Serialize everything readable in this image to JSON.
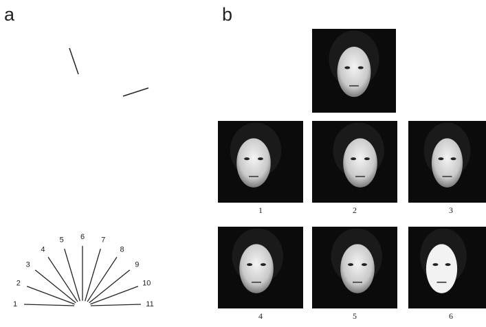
{
  "panels": {
    "a": {
      "label": "a",
      "fan_labels": [
        "1",
        "2",
        "3",
        "4",
        "5",
        "6",
        "7",
        "8",
        "9",
        "10",
        "11"
      ]
    },
    "b": {
      "label": "b",
      "captions": [
        "1",
        "2",
        "3",
        "4",
        "5",
        "6"
      ]
    }
  }
}
